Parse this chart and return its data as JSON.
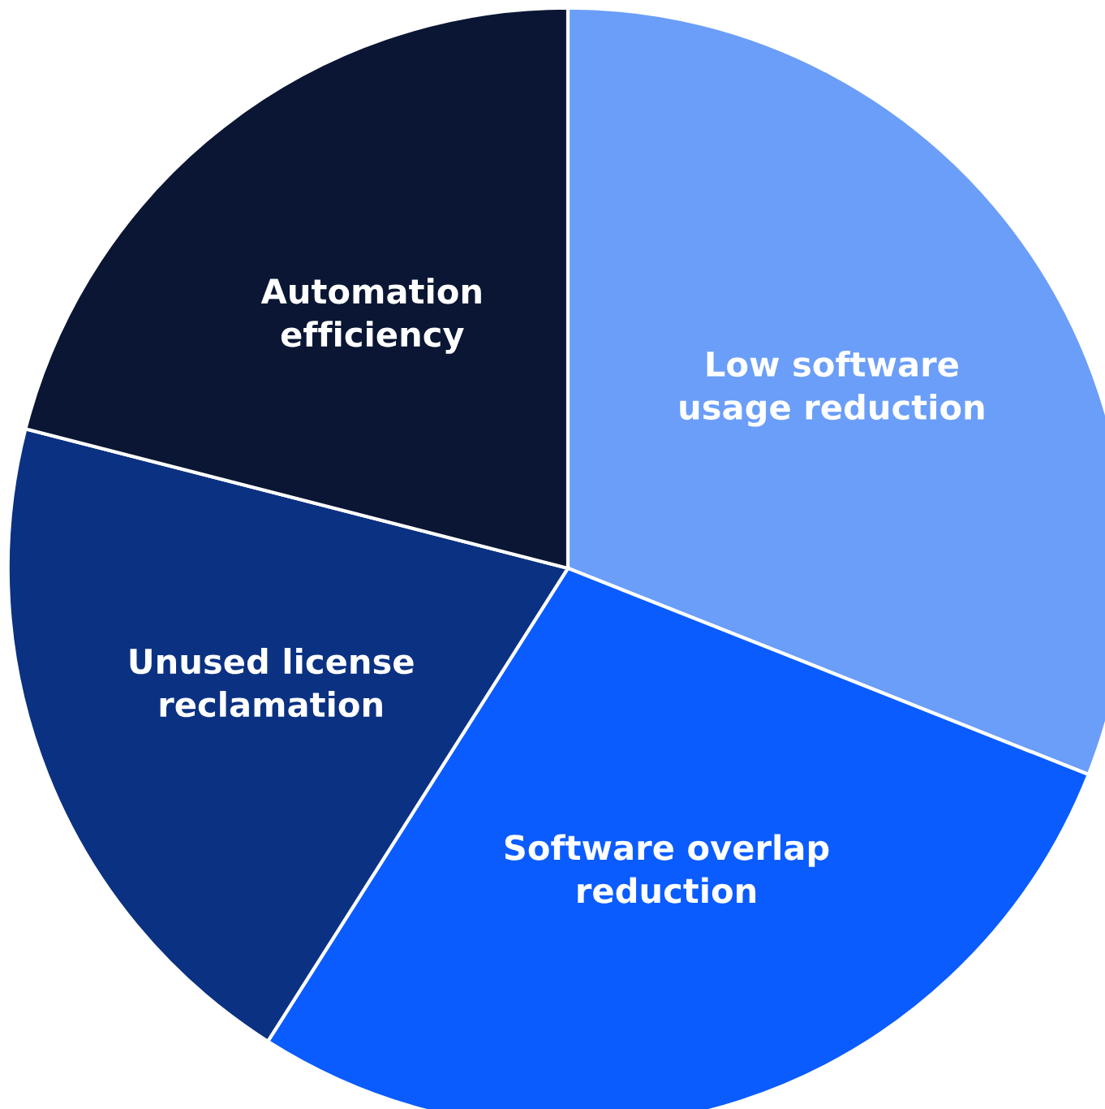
{
  "chart_data": {
    "type": "pie",
    "categories": [
      "Low software\nusage reduction",
      "Software overlap\nreduction",
      "Unused license\nreclamation",
      "Automation\nefficiency"
    ],
    "values": [
      31,
      28,
      20,
      21
    ],
    "colors": [
      "#6a9ef9",
      "#0b5cff",
      "#0b3182",
      "#0a1633"
    ],
    "legend": false
  }
}
